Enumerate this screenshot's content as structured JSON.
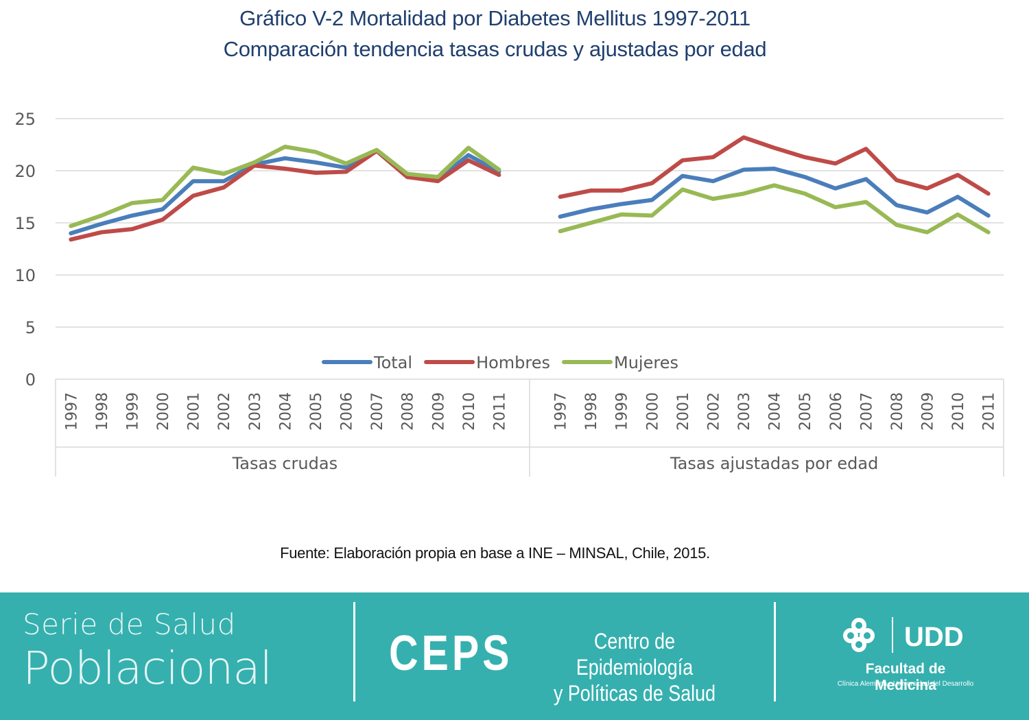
{
  "title_line1": "Gráfico V-2 Mortalidad por  Diabetes Mellitus 1997-2011",
  "title_line2": "Comparación tendencia tasas crudas y ajustadas por edad",
  "source": "Fuente: Elaboración propia en base a INE – MINSAL, Chile, 2015.",
  "footer": {
    "serie_line1": "Serie de Salud",
    "serie_line2": "Poblacional",
    "ceps": "CEPS",
    "ceps_name_line1": "Centro de Epidemiología",
    "ceps_name_line2": "y Políticas de Salud",
    "udd": "UDD",
    "faculty": "Facultad de Medicina",
    "faculty_sub": "Clínica Alemana - Universidad del Desarrollo"
  },
  "chart_data": {
    "type": "line",
    "y_ticks": [
      0,
      5,
      10,
      15,
      20,
      25
    ],
    "ylim": [
      0,
      25
    ],
    "grid": true,
    "legend_position": "bottom-center",
    "groups": [
      {
        "label": "Tasas crudas",
        "categories": [
          "1997",
          "1998",
          "1999",
          "2000",
          "2001",
          "2002",
          "2003",
          "2004",
          "2005",
          "2006",
          "2007",
          "2008",
          "2009",
          "2010",
          "2011"
        ]
      },
      {
        "label": "Tasas ajustadas por edad",
        "categories": [
          "1997",
          "1998",
          "1999",
          "2000",
          "2001",
          "2002",
          "2003",
          "2004",
          "2005",
          "2006",
          "2007",
          "2008",
          "2009",
          "2010",
          "2011"
        ]
      }
    ],
    "series": [
      {
        "name": "Total",
        "color": "#4a7ebb",
        "values": [
          [
            14.0,
            14.9,
            15.7,
            16.3,
            19.0,
            19.0,
            20.6,
            21.2,
            20.8,
            20.3,
            21.9,
            19.4,
            19.2,
            21.5,
            19.9
          ],
          [
            15.6,
            16.3,
            16.8,
            17.2,
            19.5,
            19.0,
            20.1,
            20.2,
            19.4,
            18.3,
            19.2,
            16.7,
            16.0,
            17.5,
            15.7
          ]
        ]
      },
      {
        "name": "Hombres",
        "color": "#be4b48",
        "values": [
          [
            13.4,
            14.1,
            14.4,
            15.3,
            17.6,
            18.4,
            20.5,
            20.2,
            19.8,
            19.9,
            21.9,
            19.4,
            19.0,
            21.0,
            19.6
          ],
          [
            17.5,
            18.1,
            18.1,
            18.8,
            21.0,
            21.3,
            23.2,
            22.2,
            21.3,
            20.7,
            22.1,
            19.1,
            18.3,
            19.6,
            17.8
          ]
        ]
      },
      {
        "name": "Mujeres",
        "color": "#98b954",
        "values": [
          [
            14.7,
            15.7,
            16.9,
            17.2,
            20.3,
            19.7,
            20.8,
            22.3,
            21.8,
            20.7,
            22.0,
            19.7,
            19.4,
            22.2,
            20.1
          ],
          [
            14.2,
            15.0,
            15.8,
            15.7,
            18.2,
            17.3,
            17.8,
            18.6,
            17.8,
            16.5,
            17.0,
            14.8,
            14.1,
            15.8,
            14.1
          ]
        ]
      }
    ]
  }
}
